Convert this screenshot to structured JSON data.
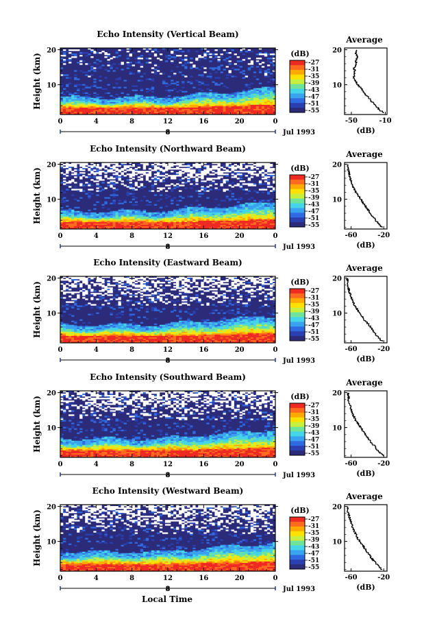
{
  "figure": {
    "xlabel": "Local Time"
  },
  "colorbar": {
    "unit": "(dB)",
    "tick_labels": [
      "-27",
      "-31",
      "-35",
      "-39",
      "-43",
      "-47",
      "-51",
      "-55"
    ],
    "colors": [
      "#2b2b7a",
      "#2a3fb0",
      "#2f6ae0",
      "#3aa3f0",
      "#45d4e8",
      "#6fe39a",
      "#c8ee3e",
      "#ffe100",
      "#ffaa00",
      "#ff6a1e",
      "#ee2a22"
    ]
  },
  "chart_data": [
    {
      "type": "heatmap",
      "title": "Echo Intensity (Vertical Beam)",
      "ylabel": "Height (km)",
      "x_ticks": [
        "0",
        "4",
        "8",
        "12",
        "16",
        "20",
        "0"
      ],
      "x_range": [
        0,
        24
      ],
      "y_ticks": [
        "20",
        "10"
      ],
      "y_range": [
        1.5,
        20.5
      ],
      "date_marker": "8",
      "date_label": "Jul 1993",
      "colorbar_unit": "(dB)",
      "colorbar_range": [
        -56,
        -27
      ],
      "profile": {
        "title": "Average",
        "xlabel": "(dB)",
        "x_tick_labels": [
          "-50",
          "-10"
        ],
        "x_ticks": [
          -50,
          -10
        ],
        "x_range": [
          -58,
          -8
        ],
        "y_ticks": [
          "20",
          "10"
        ],
        "height_km": [
          2,
          3,
          4,
          5,
          6,
          7,
          8,
          9,
          10,
          11,
          12,
          13,
          14,
          15,
          16,
          17,
          18,
          19,
          20
        ],
        "db": [
          -12,
          -17,
          -21,
          -25,
          -28,
          -32,
          -35,
          -38,
          -42,
          -45,
          -47,
          -47,
          -46,
          -47,
          -44,
          -45,
          -43,
          -45,
          -44
        ]
      }
    },
    {
      "type": "heatmap",
      "title": "Echo Intensity (Northward Beam)",
      "ylabel": "Height (km)",
      "x_ticks": [
        "0",
        "4",
        "8",
        "12",
        "16",
        "20",
        "0"
      ],
      "x_range": [
        0,
        24
      ],
      "y_ticks": [
        "20",
        "10"
      ],
      "y_range": [
        1.5,
        20.5
      ],
      "date_marker": "8",
      "date_label": "Jul 1993",
      "colorbar_unit": "(dB)",
      "colorbar_range": [
        -56,
        -27
      ],
      "profile": {
        "title": "Average",
        "xlabel": "(dB)",
        "x_tick_labels": [
          "-60",
          "-20"
        ],
        "x_ticks": [
          -60,
          -20
        ],
        "x_range": [
          -68,
          -16
        ],
        "y_ticks": [
          "20",
          "10"
        ],
        "height_km": [
          2,
          3,
          4,
          5,
          6,
          7,
          8,
          9,
          10,
          11,
          12,
          13,
          14,
          15,
          16,
          17,
          18,
          19,
          20
        ],
        "db": [
          -22,
          -26,
          -30,
          -33,
          -36,
          -39,
          -42,
          -45,
          -48,
          -51,
          -54,
          -56,
          -58,
          -60,
          -61,
          -62,
          -63,
          -64,
          -64
        ]
      }
    },
    {
      "type": "heatmap",
      "title": "Echo Intensity (Eastward Beam)",
      "ylabel": "Height (km)",
      "x_ticks": [
        "0",
        "4",
        "8",
        "12",
        "16",
        "20",
        "0"
      ],
      "x_range": [
        0,
        24
      ],
      "y_ticks": [
        "20",
        "10"
      ],
      "y_range": [
        1.5,
        20.5
      ],
      "date_marker": "8",
      "date_label": "Jul 1993",
      "colorbar_unit": "(dB)",
      "colorbar_range": [
        -56,
        -27
      ],
      "profile": {
        "title": "Average",
        "xlabel": "(dB)",
        "x_tick_labels": [
          "-60",
          "-20"
        ],
        "x_ticks": [
          -60,
          -20
        ],
        "x_range": [
          -68,
          -16
        ],
        "y_ticks": [
          "20",
          "10"
        ],
        "height_km": [
          2,
          3,
          4,
          5,
          6,
          7,
          8,
          9,
          10,
          11,
          12,
          13,
          14,
          15,
          16,
          17,
          18,
          19,
          20
        ],
        "db": [
          -22,
          -26,
          -30,
          -33,
          -36,
          -39,
          -43,
          -46,
          -49,
          -52,
          -55,
          -57,
          -59,
          -60,
          -62,
          -63,
          -64,
          -64,
          -65
        ]
      }
    },
    {
      "type": "heatmap",
      "title": "Echo Intensity (Southward Beam)",
      "ylabel": "Height (km)",
      "x_ticks": [
        "0",
        "4",
        "8",
        "12",
        "16",
        "20",
        "0"
      ],
      "x_range": [
        0,
        24
      ],
      "y_ticks": [
        "20",
        "10"
      ],
      "y_range": [
        1.5,
        20.5
      ],
      "date_marker": "8",
      "date_label": "Jul 1993",
      "colorbar_unit": "(dB)",
      "colorbar_range": [
        -56,
        -27
      ],
      "profile": {
        "title": "Average",
        "xlabel": "(dB)",
        "x_tick_labels": [
          "-60",
          "-20"
        ],
        "x_ticks": [
          -60,
          -20
        ],
        "x_range": [
          -68,
          -16
        ],
        "y_ticks": [
          "20",
          "10"
        ],
        "height_km": [
          2,
          3,
          4,
          5,
          6,
          7,
          8,
          9,
          10,
          11,
          12,
          13,
          14,
          15,
          16,
          17,
          18,
          19,
          20
        ],
        "db": [
          -21,
          -25,
          -29,
          -32,
          -36,
          -39,
          -42,
          -45,
          -48,
          -51,
          -54,
          -56,
          -58,
          -60,
          -61,
          -62,
          -63,
          -63,
          -64
        ]
      }
    },
    {
      "type": "heatmap",
      "title": "Echo Intensity (Westward Beam)",
      "ylabel": "Height (km)",
      "x_ticks": [
        "0",
        "4",
        "8",
        "12",
        "16",
        "20",
        "0"
      ],
      "x_range": [
        0,
        24
      ],
      "y_ticks": [
        "20",
        "10"
      ],
      "y_range": [
        1.5,
        20.5
      ],
      "date_marker": "8",
      "date_label": "Jul 1993",
      "colorbar_unit": "(dB)",
      "colorbar_range": [
        -56,
        -27
      ],
      "profile": {
        "title": "Average",
        "xlabel": "(dB)",
        "x_tick_labels": [
          "-60",
          "-20"
        ],
        "x_ticks": [
          -60,
          -20
        ],
        "x_range": [
          -68,
          -16
        ],
        "y_ticks": [
          "20",
          "10"
        ],
        "height_km": [
          2,
          3,
          4,
          5,
          6,
          7,
          8,
          9,
          10,
          11,
          12,
          13,
          14,
          15,
          16,
          17,
          18,
          19,
          20
        ],
        "db": [
          -22,
          -26,
          -30,
          -34,
          -37,
          -40,
          -43,
          -46,
          -49,
          -52,
          -54,
          -56,
          -58,
          -59,
          -61,
          -62,
          -63,
          -64,
          -64
        ]
      }
    }
  ]
}
